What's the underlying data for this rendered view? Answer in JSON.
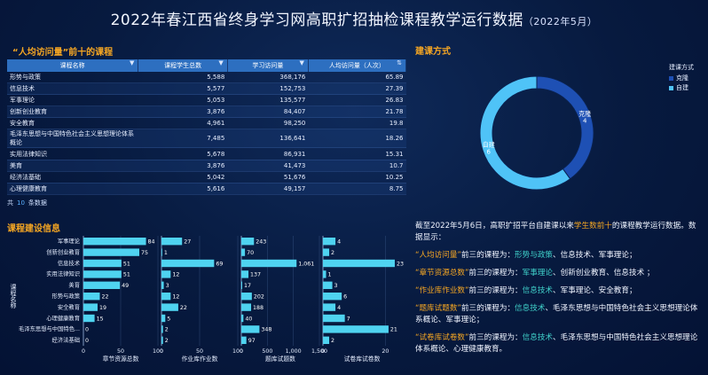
{
  "title": "2022年春江西省终身学习网高职扩招抽检课程教学运行数据",
  "title_suffix": "（2022年5月）",
  "table_section": {
    "title": "“人均访问量”前十的课程",
    "columns": [
      "课程名称",
      "课程学生总数",
      "学习访问量",
      "人均访问量（人次）"
    ],
    "rows": [
      [
        "形势与政策",
        "5,588",
        "368,176",
        "65.89"
      ],
      [
        "信息技术",
        "5,577",
        "152,753",
        "27.39"
      ],
      [
        "军事理论",
        "5,053",
        "135,577",
        "26.83"
      ],
      [
        "创新创业教育",
        "3,876",
        "84,407",
        "21.78"
      ],
      [
        "安全教育",
        "4,961",
        "98,250",
        "19.8"
      ],
      [
        "毛泽东思想与中国特色社会主义思想理论体系概论",
        "7,485",
        "136,641",
        "18.26"
      ],
      [
        "实用法律知识",
        "5,678",
        "86,931",
        "15.31"
      ],
      [
        "美育",
        "3,876",
        "41,473",
        "10.7"
      ],
      [
        "经济法基础",
        "5,042",
        "51,676",
        "10.25"
      ],
      [
        "心理健康教育",
        "5,616",
        "49,157",
        "8.75"
      ]
    ],
    "footer_prefix": "共",
    "footer_count": "10",
    "footer_suffix": "条数据"
  },
  "donut_section": {
    "title": "建课方式",
    "legend_title": "建课方式",
    "slices": [
      {
        "label": "克隆",
        "value": 4,
        "color": "#1e50b4"
      },
      {
        "label": "自建",
        "value": 6,
        "color": "#4fc3f7"
      }
    ]
  },
  "bar_section": {
    "title": "课程建设信息",
    "y_axis_title": "课程名称",
    "categories": [
      "军事理论",
      "创新创业教育",
      "信息技术",
      "实用法律知识",
      "美育",
      "形势与政策",
      "安全教育",
      "心理健康教育",
      "毛泽东思想与中国特色...",
      "经济法基础"
    ]
  },
  "chart_data": [
    {
      "type": "pie",
      "title": "建课方式",
      "labels": [
        "克隆",
        "自建"
      ],
      "values": [
        4,
        6
      ]
    },
    {
      "type": "bar",
      "orientation": "horizontal",
      "categories": [
        "军事理论",
        "创新创业教育",
        "信息技术",
        "实用法律知识",
        "美育",
        "形势与政策",
        "安全教育",
        "心理健康教育",
        "毛泽东思想与中国特色...",
        "经济法基础"
      ],
      "panels": [
        {
          "name": "章节资源总数",
          "values": [
            84,
            75,
            51,
            51,
            49,
            22,
            19,
            15,
            0,
            0
          ],
          "ticks": [
            "0",
            "50",
            "100"
          ],
          "xlim": [
            0,
            100
          ]
        },
        {
          "name": "作业库作业数",
          "values": [
            27,
            1,
            69,
            12,
            3,
            12,
            22,
            5,
            2,
            2
          ],
          "ticks": [
            "0",
            "50",
            "100"
          ],
          "xlim": [
            0,
            100
          ]
        },
        {
          "name": "题库试题数",
          "values": [
            243,
            70,
            1061,
            137,
            17,
            202,
            188,
            40,
            348,
            97
          ],
          "ticks": [
            "0",
            "500",
            "1,000",
            "1,500"
          ],
          "xlim": [
            0,
            1500
          ]
        },
        {
          "name": "试卷库试卷数",
          "values": [
            4,
            2,
            23,
            1,
            3,
            6,
            4,
            7,
            21,
            2
          ],
          "ticks": [
            "0",
            "20"
          ],
          "xlim": [
            0,
            25
          ]
        }
      ],
      "bar_color": "#4fd3f0"
    }
  ],
  "summary": {
    "p1_a": "截至2022年5月6日，高职扩招平台自建课以来",
    "p1_hl": "学生数前十",
    "p1_b": "的课程教学运行数据。数据显示：",
    "p2_hl": "“人均访问量”",
    "p2_a": "前三的课程为：",
    "p2_gr": "形势与政策",
    "p2_b": "、信息技术、军事理论；",
    "p3_hl": "“章节资源总数”",
    "p3_a": "前三的课程为：",
    "p3_gr": "军事理论",
    "p3_b": "、创新创业教育、信息技术 ；",
    "p4_hl": "“作业库作业数”",
    "p4_a": "前三的课程为：",
    "p4_gr": "信息技术",
    "p4_b": "、军事理论、安全教育；",
    "p5_hl": "“题库试题数”",
    "p5_a": "前三的课程为：",
    "p5_gr": "信息技术",
    "p5_b": "、毛泽东思想与中国特色社会主义思想理论体系概论、军事理论；",
    "p6_hl": "“试卷库试卷数”",
    "p6_a": "前三的课程为：",
    "p6_gr": "信息技术",
    "p6_b": "、毛泽东思想与中国特色社会主义思想理论体系概论、心理健康教育。"
  }
}
